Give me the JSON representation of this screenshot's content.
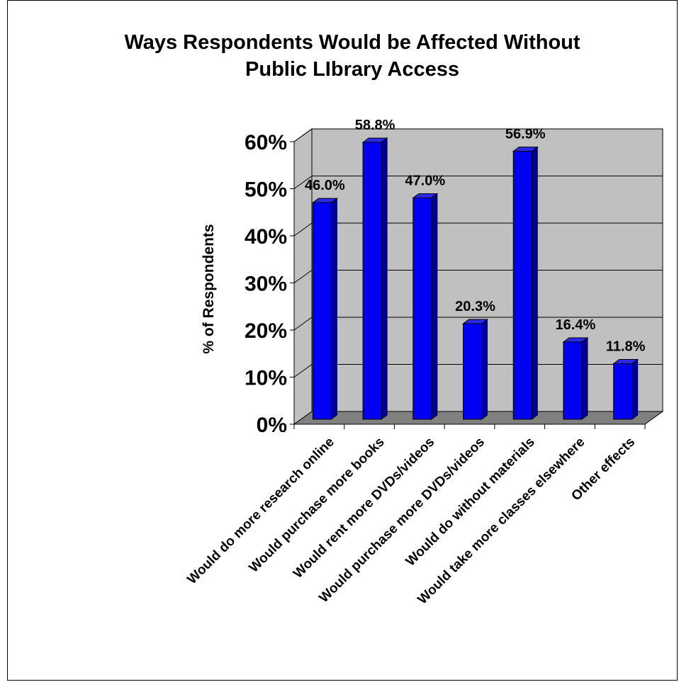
{
  "chart_data": {
    "type": "bar",
    "title": "Ways Respondents Would be Affected Without Public LIbrary Access",
    "title_lines": [
      "Ways Respondents Would be Affected Without",
      "Public LIbrary Access"
    ],
    "xlabel": "",
    "ylabel": "% of Respondents",
    "ylim": [
      0,
      60
    ],
    "yticks": [
      "0%",
      "10%",
      "20%",
      "30%",
      "40%",
      "50%",
      "60%"
    ],
    "categories": [
      "Would do more research online",
      "Would purchase more books",
      "Would rent more DVDs/videos",
      "Would purchase more DVDs/videos",
      "Would do without materials",
      "Would take more classes elsewhere",
      "Other effects"
    ],
    "values": [
      46.0,
      58.8,
      47.0,
      20.3,
      56.9,
      16.4,
      11.8
    ],
    "value_labels": [
      "46.0%",
      "58.8%",
      "47.0%",
      "20.3%",
      "56.9%",
      "16.4%",
      "11.8%"
    ],
    "grid": true,
    "legend": "none",
    "colors": {
      "bar_front": "#0000f5",
      "bar_side": "#000096",
      "bar_top": "#2a2ae6",
      "plot_wall": "#c0c0c0",
      "floor": "#808080"
    }
  }
}
